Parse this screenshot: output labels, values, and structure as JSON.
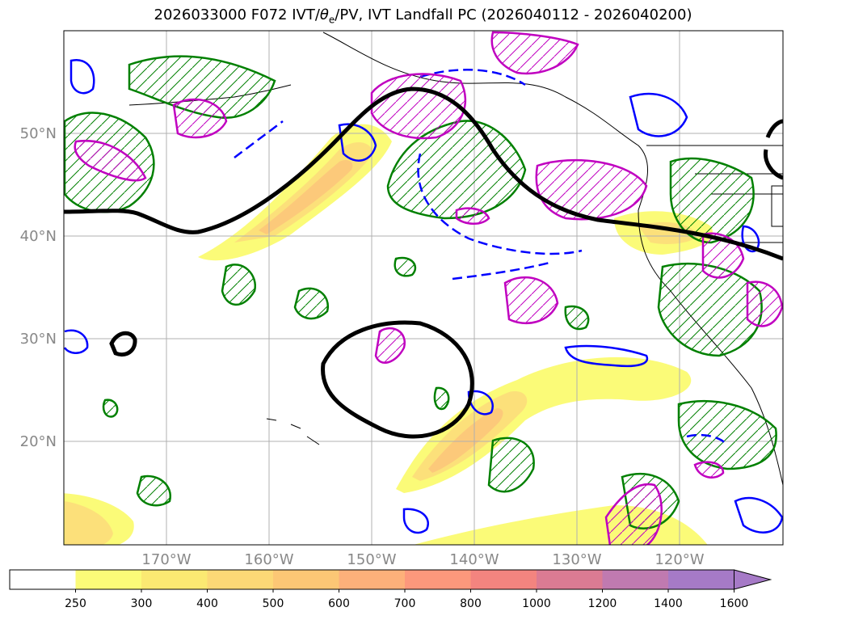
{
  "title_main": "2026033000 F072 IVT/",
  "title_theta": "θ",
  "title_theta_sub": "e",
  "title_tail": "/PV, IVT Landfall PC (2026040112 - 2026040200)",
  "map": {
    "lat_labels": [
      "50°N",
      "40°N",
      "30°N",
      "20°N"
    ],
    "lon_labels": [
      "170°W",
      "160°W",
      "150°W",
      "140°W",
      "130°W",
      "120°W"
    ]
  },
  "colorbar": {
    "ticks": [
      "250",
      "300",
      "400",
      "500",
      "600",
      "700",
      "800",
      "1000",
      "1200",
      "1400",
      "1600"
    ],
    "colors": [
      "#ffffff",
      "#fbfb78",
      "#fbe972",
      "#fcd876",
      "#fcc775",
      "#fdb07a",
      "#fc987c",
      "#f3847f",
      "#db7b93",
      "#c07ab0",
      "#a67ac7"
    ]
  },
  "colors": {
    "ivt_fill_light": "#fbfb78",
    "ivt_fill_mid": "#fce07a",
    "ivt_fill_dark": "#fcc97a",
    "theta_e": "#008000",
    "pv_positive": "#0000ff",
    "landfall_pc": "#c000c0",
    "contour_thick": "#000000"
  }
}
